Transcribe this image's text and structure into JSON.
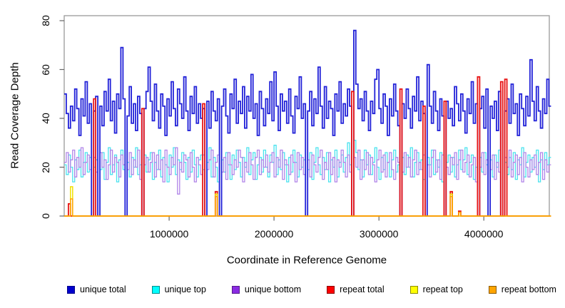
{
  "chart_data": {
    "type": "line",
    "style": "step",
    "xlabel": "Coordinate in Reference Genome",
    "ylabel": "Read Coverage Depth",
    "xlim": [
      0,
      4624000
    ],
    "ylim": [
      0,
      80
    ],
    "x_ticks": [
      1000000,
      2000000,
      3000000,
      4000000
    ],
    "x_tick_labels": [
      "1000000",
      "2000000",
      "3000000",
      "4000000"
    ],
    "y_ticks": [
      0,
      20,
      40,
      60,
      80
    ],
    "y_tick_labels": [
      "0",
      "20",
      "40",
      "60",
      "80"
    ],
    "grid": false,
    "legend_position": "bottom",
    "frame_color": "#999999",
    "tick_color": "#666666",
    "x_start": 0,
    "x_step": 20000,
    "n_points": 232,
    "legend_order": [
      "unique total",
      "unique top",
      "unique bottom",
      "repeat total",
      "repeat top",
      "repeat bottom"
    ],
    "series": [
      {
        "name": "unique top",
        "color": "#49E2EE",
        "legend_color": "#00FFFF",
        "legend_border": "#008B8B",
        "width": 1.3,
        "values": [
          21,
          17,
          25,
          20,
          14,
          23,
          19,
          27,
          16,
          22,
          26,
          18,
          24,
          0,
          20,
          23,
          0,
          19,
          26,
          15,
          22,
          28,
          17,
          21,
          25,
          14,
          23,
          27,
          19,
          0,
          22,
          16,
          24,
          20,
          28,
          17,
          21,
          0,
          25,
          18,
          23,
          26,
          15,
          22,
          19,
          27,
          16,
          24,
          21,
          14,
          25,
          20,
          28,
          17,
          23,
          19,
          26,
          22,
          15,
          24,
          18,
          27,
          21,
          16,
          23,
          25,
          19,
          0,
          22,
          28,
          16,
          24,
          20,
          14,
          0,
          23,
          18,
          26,
          21,
          15,
          25,
          19,
          27,
          22,
          16,
          24,
          20,
          28,
          17,
          23,
          26,
          15,
          21,
          24,
          18,
          27,
          20,
          16,
          25,
          22,
          29,
          17,
          23,
          19,
          26,
          21,
          14,
          24,
          18,
          27,
          22,
          16,
          25,
          20,
          23,
          0,
          19,
          26,
          15,
          22,
          28,
          21,
          17,
          24,
          19,
          26,
          14,
          23,
          20,
          27,
          16,
          22,
          25,
          18,
          24,
          30,
          21,
          0,
          31,
          26,
          19,
          23,
          16,
          27,
          21,
          25,
          17,
          22,
          28,
          20,
          15,
          24,
          19,
          26,
          22,
          16,
          23,
          27,
          18,
          21,
          0,
          24,
          17,
          25,
          20,
          28,
          16,
          22,
          26,
          19,
          23,
          15,
          0,
          24,
          21,
          27,
          17,
          23,
          20,
          26,
          14,
          0,
          22,
          25,
          18,
          24,
          16,
          21,
          27,
          19,
          23,
          28,
          17,
          22,
          25,
          15,
          20,
          0,
          24,
          18,
          26,
          21,
          0,
          23,
          16,
          25,
          20,
          27,
          0,
          0,
          22,
          17,
          24,
          19,
          26,
          15,
          23,
          21,
          28,
          16,
          22,
          25,
          18,
          24,
          20,
          27,
          14,
          23,
          19,
          26,
          21,
          24
        ]
      },
      {
        "name": "unique bottom",
        "color": "#B084E8",
        "legend_color": "#8A2BE2",
        "legend_border": "#551A8B",
        "width": 1.3,
        "values": [
          22,
          26,
          18,
          23,
          27,
          16,
          24,
          20,
          28,
          17,
          22,
          25,
          19,
          0,
          24,
          18,
          0,
          26,
          20,
          23,
          15,
          21,
          27,
          18,
          24,
          22,
          16,
          25,
          21,
          0,
          19,
          26,
          17,
          23,
          20,
          27,
          15,
          0,
          21,
          24,
          18,
          22,
          26,
          16,
          25,
          19,
          23,
          14,
          27,
          20,
          17,
          24,
          21,
          28,
          9,
          22,
          18,
          25,
          23,
          16,
          26,
          20,
          14,
          24,
          21,
          17,
          25,
          0,
          19,
          23,
          27,
          16,
          22,
          25,
          0,
          18,
          24,
          15,
          26,
          21,
          17,
          23,
          20,
          27,
          24,
          14,
          22,
          18,
          26,
          21,
          15,
          24,
          27,
          17,
          23,
          20,
          25,
          18,
          22,
          26,
          16,
          24,
          20,
          27,
          15,
          23,
          21,
          17,
          25,
          22,
          14,
          26,
          19,
          24,
          17,
          0,
          23,
          16,
          25,
          21,
          18,
          24,
          27,
          15,
          22,
          19,
          26,
          17,
          24,
          14,
          23,
          20,
          27,
          22,
          16,
          25,
          18,
          0,
          24,
          20,
          27,
          15,
          23,
          19,
          26,
          17,
          24,
          21,
          14,
          23,
          27,
          18,
          25,
          16,
          22,
          26,
          19,
          15,
          24,
          22,
          0,
          18,
          26,
          20,
          24,
          16,
          23,
          27,
          17,
          22,
          19,
          25,
          0,
          21,
          16,
          24,
          27,
          18,
          23,
          15,
          25,
          0,
          20,
          17,
          24,
          21,
          26,
          15,
          23,
          27,
          18,
          22,
          25,
          16,
          21,
          24,
          14,
          0,
          20,
          26,
          17,
          23,
          0,
          19,
          25,
          15,
          22,
          18,
          0,
          0,
          24,
          20,
          27,
          16,
          22,
          25,
          17,
          24,
          14,
          26,
          20,
          16,
          23,
          19,
          25,
          17,
          22,
          26,
          15,
          23,
          18,
          21
        ]
      },
      {
        "name": "unique total",
        "color": "#2222D8",
        "legend_color": "#0000CD",
        "legend_border": "#00008B",
        "width": 1.8,
        "values": [
          50,
          42,
          36,
          45,
          39,
          52,
          44,
          33,
          48,
          41,
          55,
          38,
          46,
          0,
          43,
          49,
          0,
          45,
          37,
          51,
          43,
          56,
          39,
          47,
          34,
          50,
          44,
          69,
          48,
          0,
          41,
          53,
          38,
          46,
          35,
          49,
          42,
          0,
          44,
          51,
          61,
          47,
          39,
          54,
          43,
          36,
          50,
          45,
          33,
          48,
          41,
          55,
          44,
          37,
          52,
          46,
          40,
          57,
          43,
          35,
          49,
          42,
          53,
          38,
          46,
          40,
          44,
          0,
          47,
          36,
          51,
          43,
          39,
          48,
          0,
          45,
          52,
          41,
          34,
          50,
          44,
          56,
          38,
          47,
          42,
          53,
          36,
          49,
          43,
          58,
          40,
          46,
          33,
          51,
          44,
          37,
          48,
          42,
          55,
          39,
          59,
          45,
          35,
          50,
          43,
          47,
          38,
          52,
          41,
          34,
          49,
          44,
          57,
          40,
          46,
          0,
          43,
          51,
          37,
          48,
          42,
          61,
          45,
          36,
          53,
          40,
          47,
          44,
          33,
          50,
          43,
          55,
          38,
          46,
          41,
          52,
          45,
          0,
          76,
          54,
          44,
          48,
          39,
          51,
          43,
          35,
          47,
          42,
          56,
          60,
          44,
          38,
          50,
          45,
          33,
          48,
          41,
          54,
          43,
          37,
          0,
          46,
          40,
          52,
          44,
          36,
          49,
          43,
          57,
          39,
          47,
          42,
          0,
          62,
          45,
          38,
          51,
          43,
          35,
          48,
          41,
          0,
          47,
          40,
          44,
          37,
          53,
          46,
          39,
          50,
          43,
          34,
          48,
          42,
          55,
          38,
          46,
          0,
          44,
          49,
          36,
          52,
          0,
          45,
          40,
          47,
          35,
          51,
          0,
          0,
          43,
          48,
          38,
          54,
          42,
          46,
          33,
          50,
          44,
          37,
          49,
          41,
          64,
          47,
          39,
          53,
          43,
          36,
          48,
          42,
          56,
          45
        ]
      },
      {
        "name": "repeat total",
        "color": "#E81515",
        "legend_color": "#FF0000",
        "legend_border": "#8B0000",
        "width": 1.8,
        "base": 0,
        "spikes": {
          "2": 5,
          "14": 48,
          "37": 44,
          "66": 46,
          "72": 10,
          "137": 51,
          "160": 52,
          "171": 45,
          "181": 47,
          "184": 10,
          "188": 2,
          "197": 57,
          "208": 55,
          "210": 56
        }
      },
      {
        "name": "repeat top",
        "color": "#F2E000",
        "legend_color": "#FFFF00",
        "legend_border": "#8B8B00",
        "width": 1.5,
        "base": 0,
        "spikes": {
          "3": 12,
          "72": 9,
          "184": 9
        }
      },
      {
        "name": "repeat bottom",
        "color": "#FFA500",
        "legend_color": "#FFA500",
        "legend_border": "#8B5A00",
        "width": 1.5,
        "base": 0,
        "spikes": {
          "3": 7,
          "72": 8,
          "184": 8,
          "188": 1.5
        }
      }
    ]
  }
}
